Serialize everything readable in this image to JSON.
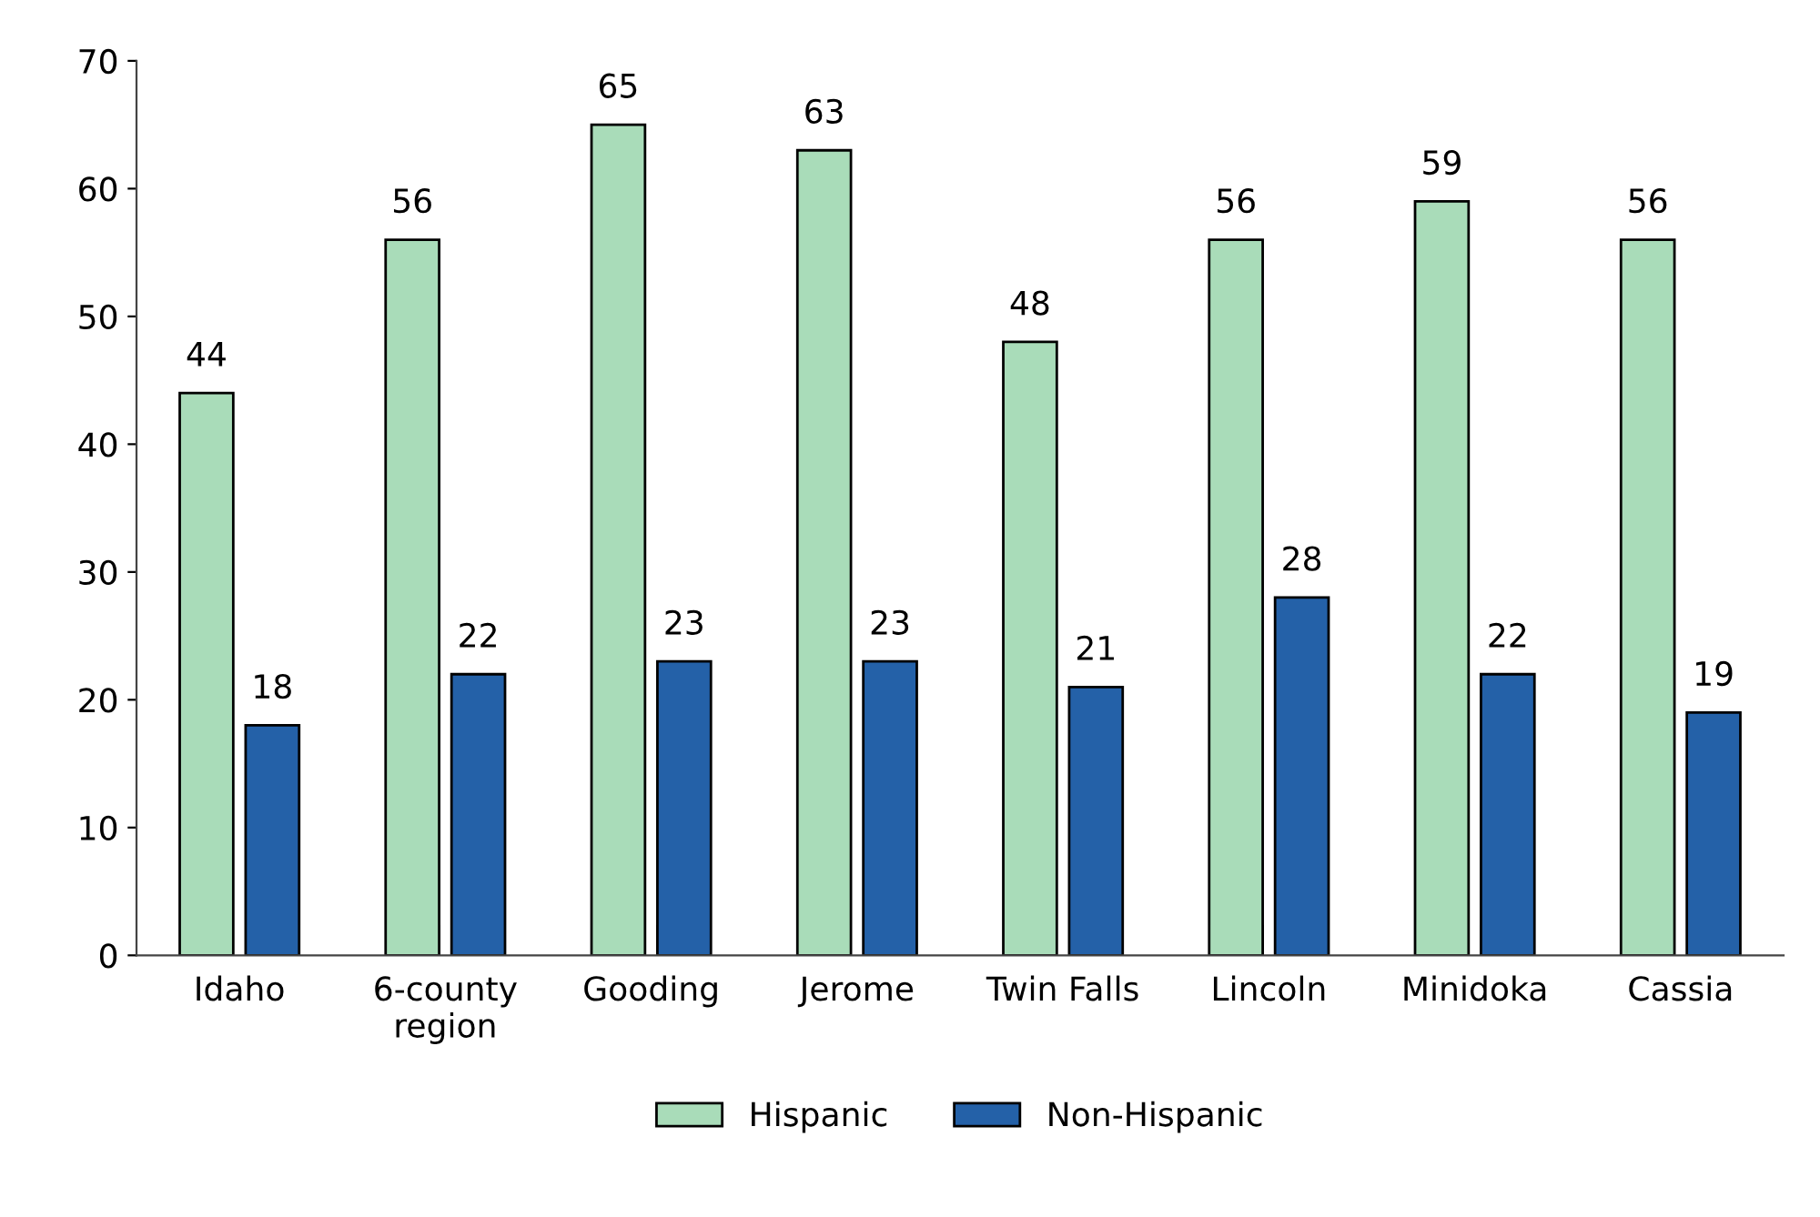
{
  "chart_data": {
    "type": "bar",
    "categories": [
      "Idaho",
      "6-county\nregion",
      "Gooding",
      "Jerome",
      "Twin Falls",
      "Lincoln",
      "Minidoka",
      "Cassia"
    ],
    "series": [
      {
        "name": "Hispanic",
        "color": "#a9dcb9",
        "values": [
          44,
          56,
          65,
          63,
          48,
          56,
          59,
          56
        ]
      },
      {
        "name": "Non-Hispanic",
        "color": "#2461a8",
        "values": [
          18,
          22,
          23,
          23,
          21,
          28,
          22,
          19
        ]
      }
    ],
    "ylim": [
      0,
      70
    ],
    "yticks": [
      0,
      10,
      20,
      30,
      40,
      50,
      60,
      70
    ],
    "data_labels": true,
    "grid": false,
    "legend": "bottom"
  }
}
